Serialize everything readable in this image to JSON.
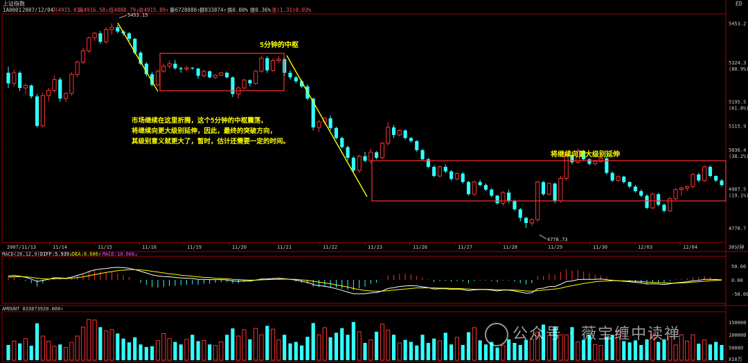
{
  "window": {
    "title": "上证指数",
    "corner_label": "ED"
  },
  "info_bar": {
    "symbol": "1A0001",
    "date": "2007/12/04",
    "open": "开4915.01↓",
    "high": "高4916.58↓",
    "low": "低4888.79↓",
    "close": "收4915.89↑",
    "volume": "量6728888↑",
    "amount": "额833874↑",
    "turnover": "换0.00%",
    "amplitude": "振0.36%",
    "change": "涨(1.31)0.03%"
  },
  "colors": {
    "up": "#ff3333",
    "down": "#33ffff",
    "annotation": "#ffff00",
    "frame": "#cc0000",
    "macd_line": "#ffffff",
    "signal_line": "#ffff00"
  },
  "annotations": {
    "zs5_label": "5分钟的中枢",
    "note_line1": "市场继续在这里折腾，这个5分钟的中枢震荡，",
    "note_line2": "将继续向更大级别延伸，因此，最终的突破方向，",
    "note_line3": "其级别意义就更大了，暂时，估计还需要一定的时间。",
    "extend_label": "将继续向更大级别延伸",
    "high_mark": "5453.15",
    "low_mark": "4778.73"
  },
  "chart_data": [
    {
      "type": "candlestick",
      "title": "上证指数",
      "ylim": [
        4740,
        5475
      ],
      "y_ticks": [
        "5453.2",
        "5324.3",
        "5195.5",
        "5115.9",
        "5036.4",
        "4907.5",
        "4778.7"
      ],
      "y_pct": [
        "(80.9%)",
        "(61.8%)",
        "(38.2%)",
        "(19.1%)"
      ],
      "x_labels": [
        "2007/11/13",
        "11/14",
        "11/15",
        "11/16",
        "11/19",
        "11/20",
        "11/21",
        "11/22",
        "11/23",
        "11/26",
        "11/27",
        "11/28",
        "11/29",
        "11/30",
        "12/03",
        "12/04"
      ],
      "period_label": "30分钟",
      "ohlc": [
        [
          5290,
          5310,
          5240,
          5255
        ],
        [
          5255,
          5300,
          5245,
          5290
        ],
        [
          5290,
          5295,
          5230,
          5240
        ],
        [
          5240,
          5255,
          5220,
          5248
        ],
        [
          5248,
          5252,
          5205,
          5212
        ],
        [
          5212,
          5220,
          5110,
          5115
        ],
        [
          5115,
          5225,
          5110,
          5215
        ],
        [
          5215,
          5240,
          5195,
          5232
        ],
        [
          5232,
          5280,
          5225,
          5268
        ],
        [
          5268,
          5275,
          5195,
          5205
        ],
        [
          5205,
          5225,
          5195,
          5222
        ],
        [
          5222,
          5292,
          5215,
          5285
        ],
        [
          5285,
          5330,
          5275,
          5325
        ],
        [
          5325,
          5372,
          5318,
          5362
        ],
        [
          5362,
          5410,
          5355,
          5405
        ],
        [
          5405,
          5425,
          5395,
          5420
        ],
        [
          5420,
          5428,
          5385,
          5392
        ],
        [
          5392,
          5440,
          5385,
          5432
        ],
        [
          5432,
          5453,
          5415,
          5440
        ],
        [
          5440,
          5448,
          5420,
          5426
        ],
        [
          5426,
          5430,
          5412,
          5420
        ],
        [
          5420,
          5424,
          5395,
          5402
        ],
        [
          5402,
          5405,
          5350,
          5356
        ],
        [
          5356,
          5362,
          5315,
          5320
        ],
        [
          5320,
          5325,
          5278,
          5285
        ],
        [
          5285,
          5292,
          5245,
          5250
        ],
        [
          5250,
          5300,
          5245,
          5295
        ],
        [
          5295,
          5320,
          5290,
          5312
        ],
        [
          5312,
          5330,
          5305,
          5320
        ],
        [
          5320,
          5332,
          5300,
          5305
        ],
        [
          5305,
          5310,
          5290,
          5302
        ],
        [
          5302,
          5312,
          5296,
          5306
        ],
        [
          5306,
          5309,
          5300,
          5304
        ],
        [
          5304,
          5306,
          5270,
          5280
        ],
        [
          5280,
          5300,
          5275,
          5295
        ],
        [
          5295,
          5298,
          5272,
          5275
        ],
        [
          5275,
          5285,
          5270,
          5282
        ],
        [
          5282,
          5294,
          5280,
          5290
        ],
        [
          5290,
          5294,
          5272,
          5275
        ],
        [
          5275,
          5278,
          5210,
          5220
        ],
        [
          5220,
          5245,
          5205,
          5240
        ],
        [
          5240,
          5270,
          5235,
          5266
        ],
        [
          5266,
          5268,
          5245,
          5255
        ],
        [
          5255,
          5300,
          5250,
          5295
        ],
        [
          5295,
          5345,
          5290,
          5338
        ],
        [
          5338,
          5345,
          5290,
          5298
        ],
        [
          5298,
          5338,
          5293,
          5330
        ],
        [
          5330,
          5345,
          5322,
          5335
        ],
        [
          5335,
          5340,
          5280,
          5290
        ],
        [
          5290,
          5298,
          5268,
          5275
        ],
        [
          5275,
          5280,
          5255,
          5262
        ],
        [
          5262,
          5268,
          5240,
          5245
        ],
        [
          5245,
          5252,
          5200,
          5205
        ],
        [
          5205,
          5208,
          5100,
          5110
        ],
        [
          5110,
          5135,
          5095,
          5128
        ],
        [
          5128,
          5145,
          5118,
          5140
        ],
        [
          5140,
          5150,
          5100,
          5108
        ],
        [
          5108,
          5112,
          5070,
          5075
        ],
        [
          5075,
          5080,
          5040,
          5045
        ],
        [
          5045,
          5050,
          5000,
          5010
        ],
        [
          5010,
          5015,
          4960,
          4968
        ],
        [
          4968,
          5020,
          4960,
          5015
        ],
        [
          5015,
          5030,
          4995,
          5000
        ],
        [
          5000,
          5040,
          4990,
          5028
        ],
        [
          5028,
          5032,
          5005,
          5010
        ],
        [
          5010,
          5062,
          5005,
          5058
        ],
        [
          5058,
          5128,
          5050,
          5110
        ],
        [
          5110,
          5118,
          5075,
          5085
        ],
        [
          5085,
          5105,
          5080,
          5100
        ],
        [
          5100,
          5104,
          5070,
          5075
        ],
        [
          5075,
          5078,
          5060,
          5065
        ],
        [
          5065,
          5068,
          5030,
          5035
        ],
        [
          5035,
          5040,
          5000,
          5005
        ],
        [
          5005,
          5010,
          4975,
          4980
        ],
        [
          4980,
          4985,
          4945,
          4950
        ],
        [
          4950,
          4985,
          4945,
          4980
        ],
        [
          4980,
          4988,
          4960,
          4965
        ],
        [
          4965,
          4970,
          4935,
          4940
        ],
        [
          4940,
          4962,
          4935,
          4958
        ],
        [
          4958,
          4962,
          4925,
          4930
        ],
        [
          4930,
          4934,
          4885,
          4890
        ],
        [
          4890,
          4935,
          4885,
          4930
        ],
        [
          4930,
          4938,
          4915,
          4920
        ],
        [
          4920,
          4925,
          4900,
          4905
        ],
        [
          4905,
          4910,
          4880,
          4885
        ],
        [
          4885,
          4888,
          4855,
          4860
        ],
        [
          4860,
          4900,
          4852,
          4895
        ],
        [
          4895,
          4905,
          4860,
          4868
        ],
        [
          4868,
          4872,
          4835,
          4840
        ],
        [
          4840,
          4845,
          4800,
          4812
        ],
        [
          4812,
          4815,
          4779,
          4795
        ],
        [
          4795,
          4810,
          4785,
          4806
        ],
        [
          4806,
          4935,
          4798,
          4930
        ],
        [
          4930,
          4933,
          4885,
          4890
        ],
        [
          4890,
          4930,
          4885,
          4925
        ],
        [
          4925,
          4928,
          4860,
          4868
        ],
        [
          4868,
          4950,
          4862,
          4942
        ],
        [
          4942,
          5030,
          4935,
          5018
        ],
        [
          5018,
          5022,
          4988,
          4995
        ],
        [
          4995,
          5040,
          4990,
          5032
        ],
        [
          5032,
          5036,
          5000,
          5005
        ],
        [
          5005,
          5008,
          4985,
          4990
        ],
        [
          4990,
          5002,
          4985,
          4998
        ],
        [
          4998,
          5015,
          4995,
          5008
        ],
        [
          5008,
          5012,
          4955,
          4960
        ],
        [
          4960,
          4965,
          4930,
          4935
        ],
        [
          4935,
          4952,
          4930,
          4948
        ],
        [
          4948,
          4950,
          4925,
          4930
        ],
        [
          4930,
          4932,
          4910,
          4915
        ],
        [
          4915,
          4920,
          4895,
          4900
        ],
        [
          4900,
          4906,
          4880,
          4885
        ],
        [
          4885,
          4890,
          4840,
          4845
        ],
        [
          4845,
          4895,
          4840,
          4890
        ],
        [
          4890,
          4894,
          4850,
          4855
        ],
        [
          4855,
          4860,
          4830,
          4835
        ],
        [
          4835,
          4880,
          4830,
          4875
        ],
        [
          4875,
          4910,
          4870,
          4905
        ],
        [
          4905,
          4915,
          4885,
          4910
        ],
        [
          4910,
          4918,
          4900,
          4915
        ],
        [
          4915,
          4960,
          4910,
          4955
        ],
        [
          4955,
          4960,
          4930,
          4935
        ],
        [
          4935,
          4985,
          4930,
          4980
        ],
        [
          4980,
          4985,
          4945,
          4950
        ],
        [
          4950,
          4952,
          4930,
          4935
        ],
        [
          4935,
          4940,
          4915,
          4920
        ]
      ]
    },
    {
      "type": "line",
      "title": "MACD(26,12,9)",
      "legend": [
        "DIFF:5.939↓",
        "DEA:0.606↑",
        "MACD:10.666↓"
      ],
      "y_ticks": [
        "50.00",
        "0.00",
        "-50.00"
      ],
      "ylim": [
        -75,
        75
      ],
      "diff": [
        14,
        16,
        13,
        9,
        3,
        -6,
        -2,
        2,
        8,
        7,
        6,
        10,
        16,
        22,
        30,
        36,
        39,
        41,
        44,
        45,
        44,
        42,
        37,
        31,
        25,
        18,
        14,
        12,
        11,
        9,
        7,
        6,
        5,
        2,
        2,
        1,
        1,
        1,
        0,
        -4,
        -5,
        -4,
        -4,
        -1,
        3,
        3,
        5,
        6,
        4,
        2,
        -1,
        -5,
        -9,
        -17,
        -21,
        -23,
        -27,
        -32,
        -38,
        -44,
        -50,
        -50,
        -50,
        -47,
        -46,
        -40,
        -31,
        -28,
        -24,
        -22,
        -21,
        -22,
        -25,
        -28,
        -33,
        -32,
        -32,
        -34,
        -33,
        -35,
        -39,
        -36,
        -35,
        -35,
        -37,
        -40,
        -37,
        -37,
        -40,
        -44,
        -48,
        -47,
        -32,
        -30,
        -24,
        -24,
        -16,
        -6,
        -4,
        1,
        2,
        2,
        2,
        3,
        1,
        -2,
        -3,
        -5,
        -7,
        -9,
        -11,
        -15,
        -14,
        -15,
        -17,
        -14,
        -11,
        -9,
        -7,
        -3,
        -2,
        2,
        2,
        1,
        0
      ],
      "dea": [
        10,
        11,
        12,
        11,
        9,
        6,
        4,
        3,
        4,
        5,
        5,
        6,
        8,
        11,
        15,
        19,
        23,
        27,
        30,
        33,
        35,
        37,
        37,
        36,
        34,
        31,
        28,
        25,
        22,
        20,
        17,
        15,
        13,
        11,
        9,
        8,
        6,
        5,
        4,
        2,
        1,
        0,
        -1,
        -1,
        0,
        1,
        2,
        2,
        3,
        2,
        2,
        0,
        -2,
        -5,
        -8,
        -11,
        -14,
        -18,
        -22,
        -26,
        -31,
        -35,
        -38,
        -40,
        -41,
        -41,
        -39,
        -37,
        -35,
        -33,
        -31,
        -29,
        -29,
        -29,
        -29,
        -30,
        -30,
        -31,
        -31,
        -32,
        -33,
        -34,
        -34,
        -34,
        -35,
        -36,
        -36,
        -36,
        -37,
        -38,
        -40,
        -41,
        -39,
        -37,
        -35,
        -33,
        -30,
        -25,
        -21,
        -17,
        -13,
        -10,
        -7,
        -5,
        -4,
        -3,
        -3,
        -4,
        -4,
        -5,
        -6,
        -8,
        -9,
        -10,
        -11,
        -12,
        -12,
        -11,
        -10,
        -8,
        -7,
        -5,
        -3,
        -2,
        -1
      ]
    },
    {
      "type": "bar",
      "title": "AMOUNT 833873920.000↑",
      "y_ticks": [
        "150000",
        "100000",
        "50000"
      ],
      "unit_label": "X10万",
      "ylim": [
        0,
        185000
      ],
      "values": [
        60000,
        75000,
        66000,
        85000,
        57000,
        145000,
        95000,
        75000,
        55000,
        62000,
        50000,
        70000,
        95000,
        130000,
        160000,
        158000,
        130000,
        115000,
        120000,
        105000,
        85000,
        70000,
        90000,
        62000,
        52000,
        55000,
        77000,
        105000,
        85000,
        72000,
        62000,
        82000,
        100000,
        75000,
        78000,
        62000,
        58000,
        72000,
        100000,
        125000,
        95000,
        120000,
        82000,
        125000,
        100000,
        135000,
        122000,
        80000,
        100000,
        66000,
        72000,
        58000,
        92000,
        146000,
        100000,
        128000,
        90000,
        108000,
        126000,
        100000,
        150000,
        112000,
        68000,
        80000,
        112000,
        142000,
        118000,
        100000,
        68000,
        80000,
        72000,
        58000,
        100000,
        68000,
        85000,
        76000,
        108000,
        62000,
        90000,
        60000,
        110000,
        128000,
        78000,
        62000,
        72000,
        50000,
        58000,
        82000,
        68000,
        60000,
        80000,
        82000,
        110000,
        140000,
        98000,
        130000,
        100000,
        100000,
        130000,
        72000,
        80000,
        100000,
        62000,
        58000,
        92000,
        100000,
        115000,
        75000,
        70000,
        78000,
        60000,
        82000,
        100000,
        72000,
        82000,
        92000,
        60000,
        100000,
        75000,
        100000,
        65000,
        80000,
        62000,
        72000,
        60000
      ],
      "up_flags": [
        0,
        1,
        0,
        1,
        0,
        0,
        1,
        1,
        1,
        0,
        1,
        1,
        1,
        1,
        1,
        1,
        0,
        1,
        1,
        0,
        0,
        0,
        0,
        0,
        0,
        0,
        1,
        1,
        1,
        0,
        0,
        1,
        0,
        0,
        1,
        0,
        1,
        1,
        0,
        0,
        1,
        1,
        0,
        1,
        1,
        0,
        1,
        1,
        0,
        0,
        0,
        0,
        0,
        0,
        1,
        1,
        0,
        0,
        0,
        0,
        0,
        1,
        0,
        1,
        0,
        1,
        1,
        0,
        1,
        0,
        0,
        0,
        0,
        0,
        0,
        1,
        0,
        0,
        1,
        0,
        0,
        1,
        0,
        0,
        0,
        0,
        1,
        0,
        0,
        0,
        0,
        1,
        1,
        0,
        1,
        0,
        1,
        1,
        0,
        1,
        0,
        0,
        1,
        1,
        0,
        0,
        1,
        0,
        0,
        0,
        0,
        0,
        1,
        0,
        0,
        1,
        1,
        1,
        1,
        1,
        0,
        1,
        0,
        0,
        0
      ]
    }
  ]
}
